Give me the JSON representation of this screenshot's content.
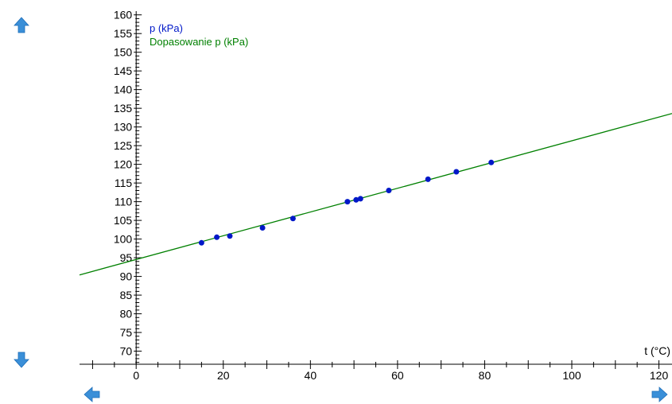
{
  "chart_data": {
    "type": "scatter",
    "xlabel": "t (°C)",
    "ylabel": "",
    "xlim": [
      -13,
      123
    ],
    "ylim": [
      66.5,
      161
    ],
    "x_ticks": [
      0,
      20,
      40,
      60,
      80,
      100,
      120
    ],
    "y_ticks": [
      70,
      75,
      80,
      85,
      90,
      95,
      100,
      105,
      110,
      115,
      120,
      125,
      130,
      135,
      140,
      145,
      150,
      155,
      160
    ],
    "legend": [
      "p (kPa)",
      "Dopasowanie p (kPa)"
    ],
    "legend_position": "top-left",
    "series": [
      {
        "name": "p (kPa)",
        "color": "#0018c8",
        "kind": "points",
        "x": [
          15,
          18.5,
          21.5,
          29,
          36,
          48.5,
          50.5,
          51.5,
          58,
          67,
          73.5,
          81.5
        ],
        "y": [
          99,
          100.5,
          100.8,
          103,
          105.5,
          110,
          110.5,
          110.8,
          113,
          116,
          118,
          120.5
        ]
      },
      {
        "name": "Dopasowanie p (kPa)",
        "color": "#008000",
        "kind": "line",
        "x": [
          -13,
          123
        ],
        "y": [
          90.4,
          133.6
        ]
      }
    ],
    "grid": false
  },
  "controls": {
    "up_icon": "arrow-up-icon",
    "down_icon": "arrow-down-icon",
    "left_icon": "arrow-left-icon",
    "right_icon": "arrow-right-icon",
    "arrow_color": "#3a8fd8"
  }
}
